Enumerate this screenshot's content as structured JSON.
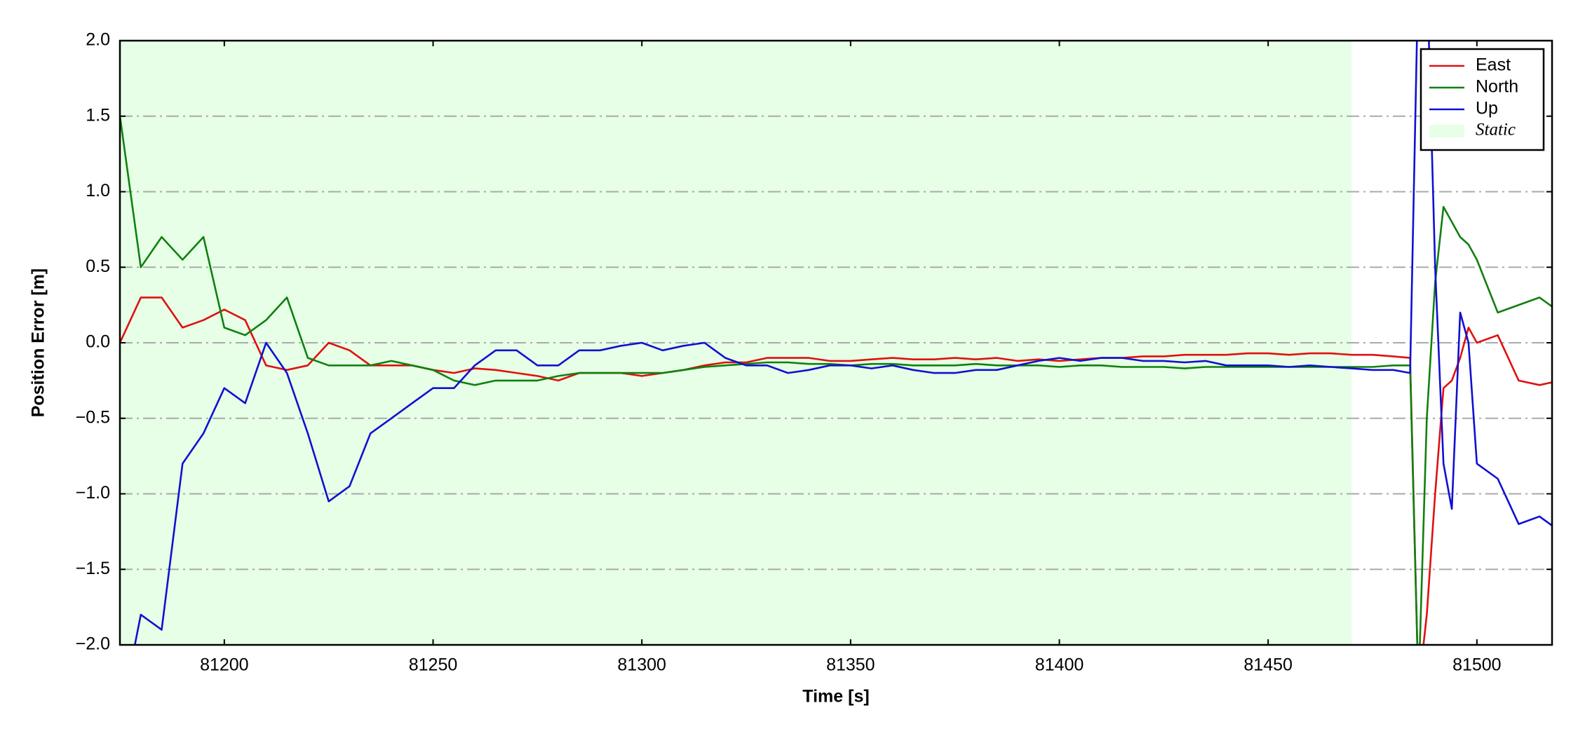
{
  "chart_data": {
    "type": "line",
    "xlabel": "Time [s]",
    "ylabel": "Position Error [m]",
    "xlim": [
      81175,
      81518
    ],
    "ylim": [
      -2,
      2
    ],
    "xticks": [
      81200,
      81250,
      81300,
      81350,
      81400,
      81450,
      81500
    ],
    "yticks": [
      {
        "value": -2,
        "label": "−2.0"
      },
      {
        "value": -1.5,
        "label": "−1.5"
      },
      {
        "value": -1,
        "label": "−1.0"
      },
      {
        "value": -0.5,
        "label": "−0.5"
      },
      {
        "value": 0,
        "label": "0.0"
      },
      {
        "value": 0.5,
        "label": "0.5"
      },
      {
        "value": 1,
        "label": "1.0"
      },
      {
        "value": 1.5,
        "label": "1.5"
      },
      {
        "value": 2,
        "label": "2.0"
      }
    ],
    "grid": true,
    "legend": "upper right",
    "static": {
      "name": "Static",
      "color": "#e6ffe6",
      "range": [
        81175,
        81470
      ]
    },
    "x": [
      81175,
      81180,
      81185,
      81190,
      81195,
      81200,
      81205,
      81210,
      81215,
      81220,
      81225,
      81230,
      81235,
      81240,
      81245,
      81250,
      81255,
      81260,
      81265,
      81270,
      81275,
      81280,
      81285,
      81290,
      81295,
      81300,
      81305,
      81310,
      81315,
      81320,
      81325,
      81330,
      81335,
      81340,
      81345,
      81350,
      81355,
      81360,
      81365,
      81370,
      81375,
      81380,
      81385,
      81390,
      81395,
      81400,
      81405,
      81410,
      81415,
      81420,
      81425,
      81430,
      81435,
      81440,
      81445,
      81450,
      81455,
      81460,
      81465,
      81470,
      81475,
      81480,
      81484,
      81486,
      81488,
      81490,
      81492,
      81494,
      81496,
      81498,
      81500,
      81505,
      81510,
      81515,
      81520
    ],
    "series": [
      {
        "name": "East",
        "color": "#e01010",
        "values": [
          0.0,
          0.3,
          0.3,
          0.1,
          0.15,
          0.22,
          0.15,
          -0.15,
          -0.18,
          -0.15,
          0.0,
          -0.05,
          -0.15,
          -0.15,
          -0.15,
          -0.18,
          -0.2,
          -0.17,
          -0.18,
          -0.2,
          -0.22,
          -0.25,
          -0.2,
          -0.2,
          -0.2,
          -0.22,
          -0.2,
          -0.18,
          -0.15,
          -0.13,
          -0.13,
          -0.1,
          -0.1,
          -0.1,
          -0.12,
          -0.12,
          -0.11,
          -0.1,
          -0.11,
          -0.11,
          -0.1,
          -0.11,
          -0.1,
          -0.12,
          -0.11,
          -0.12,
          -0.11,
          -0.1,
          -0.1,
          -0.09,
          -0.09,
          -0.08,
          -0.08,
          -0.08,
          -0.07,
          -0.07,
          -0.08,
          -0.07,
          -0.07,
          -0.08,
          -0.08,
          -0.09,
          -0.1,
          -2.3,
          -1.8,
          -1.0,
          -0.3,
          -0.25,
          -0.1,
          0.1,
          0.0,
          0.05,
          -0.25,
          -0.28,
          -0.25
        ]
      },
      {
        "name": "North",
        "color": "#108010",
        "values": [
          1.5,
          0.5,
          0.7,
          0.55,
          0.7,
          0.1,
          0.05,
          0.15,
          0.3,
          -0.1,
          -0.15,
          -0.15,
          -0.15,
          -0.12,
          -0.15,
          -0.18,
          -0.25,
          -0.28,
          -0.25,
          -0.25,
          -0.25,
          -0.22,
          -0.2,
          -0.2,
          -0.2,
          -0.2,
          -0.2,
          -0.18,
          -0.16,
          -0.15,
          -0.14,
          -0.13,
          -0.13,
          -0.14,
          -0.14,
          -0.15,
          -0.14,
          -0.14,
          -0.15,
          -0.15,
          -0.15,
          -0.14,
          -0.15,
          -0.15,
          -0.15,
          -0.16,
          -0.15,
          -0.15,
          -0.16,
          -0.16,
          -0.16,
          -0.17,
          -0.16,
          -0.16,
          -0.16,
          -0.16,
          -0.16,
          -0.16,
          -0.16,
          -0.16,
          -0.16,
          -0.15,
          -0.15,
          -2.3,
          -0.5,
          0.4,
          0.9,
          0.8,
          0.7,
          0.65,
          0.55,
          0.2,
          0.25,
          0.3,
          0.2
        ]
      },
      {
        "name": "Up",
        "color": "#1010d0",
        "values": [
          -2.5,
          -1.8,
          -1.9,
          -0.8,
          -0.6,
          -0.3,
          -0.4,
          0.0,
          -0.2,
          -0.6,
          -1.05,
          -0.95,
          -0.6,
          -0.5,
          -0.4,
          -0.3,
          -0.3,
          -0.15,
          -0.05,
          -0.05,
          -0.15,
          -0.15,
          -0.05,
          -0.05,
          -0.02,
          0.0,
          -0.05,
          -0.02,
          0.0,
          -0.1,
          -0.15,
          -0.15,
          -0.2,
          -0.18,
          -0.15,
          -0.15,
          -0.17,
          -0.15,
          -0.18,
          -0.2,
          -0.2,
          -0.18,
          -0.18,
          -0.15,
          -0.12,
          -0.1,
          -0.12,
          -0.1,
          -0.1,
          -0.12,
          -0.12,
          -0.13,
          -0.12,
          -0.15,
          -0.15,
          -0.15,
          -0.16,
          -0.15,
          -0.16,
          -0.17,
          -0.18,
          -0.18,
          -0.2,
          2.5,
          2.5,
          0.5,
          -0.8,
          -1.1,
          0.2,
          0.0,
          -0.8,
          -0.9,
          -1.2,
          -1.15,
          -1.25
        ]
      }
    ]
  }
}
